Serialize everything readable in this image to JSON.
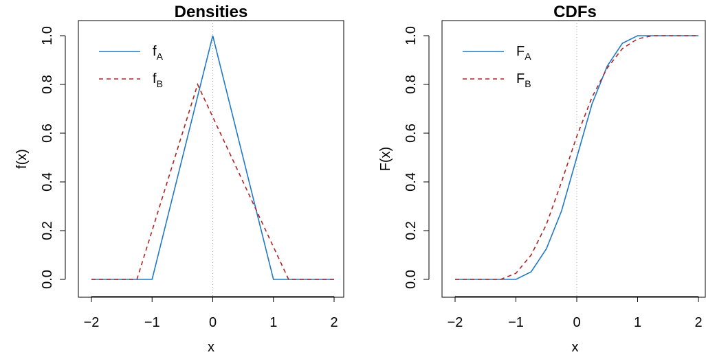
{
  "colors": {
    "A": "#1f78c8",
    "B": "#b22222",
    "vline": "#aaaaaa"
  },
  "chart_data": [
    {
      "type": "line",
      "title": "Densities",
      "xlabel": "x",
      "ylabel": "f(x)",
      "xlim": [
        -2,
        2
      ],
      "ylim": [
        0,
        1
      ],
      "xticks": [
        "−2",
        "−1",
        "0",
        "1",
        "2"
      ],
      "yticks": [
        "0.0",
        "0.2",
        "0.4",
        "0.6",
        "0.8",
        "1.0"
      ],
      "reference_line_x": 0,
      "legend": {
        "position": "top-left",
        "entries": [
          {
            "base": "f",
            "sub": "A"
          },
          {
            "base": "f",
            "sub": "B"
          }
        ]
      },
      "series": [
        {
          "name": "fA",
          "style": "solid",
          "color": "#1f78c8",
          "x": [
            -2,
            -1,
            0,
            1,
            2
          ],
          "y": [
            0,
            0,
            1,
            0,
            0
          ]
        },
        {
          "name": "fB",
          "style": "dashed",
          "color": "#b22222",
          "x": [
            -2,
            -1.25,
            -0.25,
            1.25,
            2
          ],
          "y": [
            0,
            0,
            0.8,
            0,
            0
          ]
        }
      ]
    },
    {
      "type": "line",
      "title": "CDFs",
      "xlabel": "x",
      "ylabel": "F(x)",
      "xlim": [
        -2,
        2
      ],
      "ylim": [
        0,
        1
      ],
      "xticks": [
        "−2",
        "−1",
        "0",
        "1",
        "2"
      ],
      "yticks": [
        "0.0",
        "0.2",
        "0.4",
        "0.6",
        "0.8",
        "1.0"
      ],
      "reference_line_x": 0,
      "legend": {
        "position": "top-left",
        "entries": [
          {
            "base": "F",
            "sub": "A"
          },
          {
            "base": "F",
            "sub": "B"
          }
        ]
      },
      "series": [
        {
          "name": "FA",
          "style": "solid",
          "color": "#1f78c8",
          "x": [
            -2,
            -1,
            -0.75,
            -0.5,
            -0.25,
            0,
            0.25,
            0.5,
            0.75,
            1,
            2
          ],
          "y": [
            0,
            0,
            0.031,
            0.125,
            0.281,
            0.5,
            0.719,
            0.875,
            0.969,
            1,
            1
          ]
        },
        {
          "name": "FB",
          "style": "dashed",
          "color": "#b22222",
          "x": [
            -2,
            -1.25,
            -1,
            -0.75,
            -0.5,
            -0.25,
            0,
            0.25,
            0.5,
            0.75,
            1,
            1.25,
            2
          ],
          "y": [
            0,
            0,
            0.025,
            0.1,
            0.225,
            0.4,
            0.587,
            0.747,
            0.867,
            0.947,
            0.987,
            1,
            1
          ]
        }
      ]
    }
  ]
}
